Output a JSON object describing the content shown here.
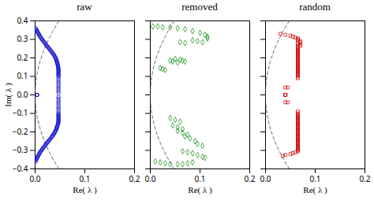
{
  "chart_data": [
    {
      "type": "scatter",
      "title": "raw",
      "xlabel": "Re( λ )",
      "ylabel": "Im( λ )",
      "xlim": [
        0,
        0.2
      ],
      "ylim": [
        -0.4,
        0.4
      ],
      "xticks": [
        {
          "value": 0,
          "label": "0.0"
        },
        0.1,
        0.2
      ],
      "yticks": [
        -0.4,
        -0.3,
        -0.2,
        -0.1,
        {
          "value": 0,
          "label": "0.0"
        },
        0.1,
        0.2,
        0.3,
        0.4
      ],
      "series": [
        {
          "type": "line",
          "line_style": "dashed",
          "color": "#444444",
          "x": [
            0.048,
            0.04332,
            0.03888,
            0.03468,
            0.03072,
            0.027,
            0.02352,
            0.02028,
            0.01728,
            0.01452,
            0.012,
            0.00972,
            0.00768,
            0.00588,
            0.00432,
            0.003,
            0.00192,
            0.00108,
            0.00048,
            0.00012,
            0,
            0.00012,
            0.00048,
            0.00108,
            0.00192,
            0.003,
            0.00432,
            0.00588,
            0.00768,
            0.00972,
            0.012,
            0.01452,
            0.01728,
            0.02028,
            0.02352,
            0.027,
            0.03072,
            0.03468,
            0.03888,
            0.04332,
            0.048
          ],
          "values": [
            -0.4,
            -0.38,
            -0.36,
            -0.34,
            -0.32,
            -0.3,
            -0.28,
            -0.26,
            -0.24,
            -0.22,
            -0.2,
            -0.18,
            -0.16,
            -0.14,
            -0.12,
            -0.1,
            -0.08,
            -0.06,
            -0.04,
            -0.02,
            0,
            0.02,
            0.04,
            0.06,
            0.08,
            0.1,
            0.12,
            0.14,
            0.16,
            0.18,
            0.2,
            0.22,
            0.24,
            0.26,
            0.28,
            0.3,
            0.32,
            0.34,
            0.36,
            0.38,
            0.4
          ]
        },
        {
          "type": "scatter",
          "marker": "circle",
          "color": "#0000cc",
          "x": [
            0.001,
            0.002,
            0.003,
            0.004,
            0.005,
            0.006,
            0.007,
            0.008,
            0.009,
            0.01,
            0.011,
            0.013,
            0.014,
            0.015,
            0.017,
            0.018,
            0.02,
            0.021,
            0.022,
            0.024,
            0.025,
            0.027,
            0.028,
            0.03,
            0.031,
            0.033,
            0.034,
            0.035,
            0.037,
            0.038,
            0.039,
            0.04,
            0.041,
            0.042,
            0.043,
            0.043,
            0.044,
            0.044,
            0.045,
            0.045,
            0.046,
            0.046,
            0.046,
            0.047,
            0.047,
            0.047,
            0.047,
            0.047,
            0.047,
            0.047,
            0.047,
            0.047,
            0.047,
            0.047,
            0.047,
            0.047,
            0.047,
            0.047,
            0.047,
            0.047,
            0.047,
            0.047,
            0.004,
            0.004,
            0.004,
            0.047,
            0.047,
            0.047,
            0.047,
            0.047,
            0.047,
            0.047,
            0.047,
            0.047,
            0.047,
            0.047,
            0.047,
            0.047,
            0.047,
            0.047,
            0.047,
            0.047,
            0.047,
            0.047,
            0.047,
            0.046,
            0.046,
            0.045,
            0.044,
            0.044,
            0.043,
            0.043,
            0.042,
            0.041,
            0.04,
            0.039,
            0.038,
            0.037,
            0.035,
            0.034,
            0.033,
            0.031,
            0.03,
            0.028,
            0.027,
            0.025,
            0.024,
            0.022,
            0.021,
            0.02,
            0.018,
            0.017,
            0.015,
            0.014,
            0.013,
            0.011,
            0.01,
            0.009,
            0.008,
            0.007,
            0.006,
            0.005,
            0.004,
            0.003,
            0.002,
            0.001,
            0.001
          ],
          "values": [
            0.36,
            0.355,
            0.35,
            0.345,
            0.34,
            0.335,
            0.33,
            0.325,
            0.32,
            0.315,
            0.31,
            0.305,
            0.3,
            0.295,
            0.29,
            0.285,
            0.28,
            0.275,
            0.27,
            0.265,
            0.26,
            0.255,
            0.25,
            0.245,
            0.24,
            0.235,
            0.23,
            0.225,
            0.22,
            0.215,
            0.21,
            0.205,
            0.2,
            0.195,
            0.19,
            0.185,
            0.18,
            0.175,
            0.17,
            0.165,
            0.16,
            0.155,
            0.15,
            0.145,
            0.14,
            0.135,
            0.13,
            0.125,
            0.12,
            0.115,
            0.11,
            0.105,
            0.1,
            0.09,
            0.08,
            0.07,
            0.06,
            0.05,
            0.04,
            0.03,
            0.02,
            0.01,
            0,
            0,
            0,
            -0.01,
            -0.02,
            -0.03,
            -0.04,
            -0.05,
            -0.06,
            -0.07,
            -0.08,
            -0.09,
            -0.1,
            -0.105,
            -0.11,
            -0.115,
            -0.12,
            -0.125,
            -0.13,
            -0.135,
            -0.14,
            -0.145,
            -0.15,
            -0.155,
            -0.16,
            -0.165,
            -0.17,
            -0.175,
            -0.18,
            -0.185,
            -0.19,
            -0.195,
            -0.2,
            -0.205,
            -0.21,
            -0.215,
            -0.22,
            -0.225,
            -0.23,
            -0.235,
            -0.24,
            -0.245,
            -0.25,
            -0.255,
            -0.26,
            -0.265,
            -0.27,
            -0.275,
            -0.28,
            -0.285,
            -0.29,
            -0.295,
            -0.3,
            -0.305,
            -0.31,
            -0.315,
            -0.32,
            -0.325,
            -0.33,
            -0.335,
            -0.34,
            -0.345,
            -0.35,
            -0.355,
            -0.36
          ]
        }
      ]
    },
    {
      "type": "scatter",
      "title": "removed",
      "xlabel": "Re( λ )",
      "tick_labels": "x",
      "xlim": [
        0,
        0.2
      ],
      "ylim": [
        -0.4,
        0.4
      ],
      "xticks": [
        {
          "value": 0,
          "label": "0.0"
        },
        0.1,
        0.2
      ],
      "yticks": [
        -0.4,
        -0.3,
        -0.2,
        -0.1,
        0,
        0.1,
        0.2,
        0.3,
        0.4
      ],
      "series": [
        {
          "type": "line",
          "line_style": "dashed",
          "color": "#444444",
          "x": [
            0.048,
            0.04332,
            0.03888,
            0.03468,
            0.03072,
            0.027,
            0.02352,
            0.02028,
            0.01728,
            0.01452,
            0.012,
            0.00972,
            0.00768,
            0.00588,
            0.00432,
            0.003,
            0.00192,
            0.00108,
            0.00048,
            0.00012,
            0,
            0.00012,
            0.00048,
            0.00108,
            0.00192,
            0.003,
            0.00432,
            0.00588,
            0.00768,
            0.00972,
            0.012,
            0.01452,
            0.01728,
            0.02028,
            0.02352,
            0.027,
            0.03072,
            0.03468,
            0.03888,
            0.04332,
            0.048
          ],
          "values": [
            -0.4,
            -0.38,
            -0.36,
            -0.34,
            -0.32,
            -0.3,
            -0.28,
            -0.26,
            -0.24,
            -0.22,
            -0.2,
            -0.18,
            -0.16,
            -0.14,
            -0.12,
            -0.1,
            -0.08,
            -0.06,
            -0.04,
            -0.02,
            0,
            0.02,
            0.04,
            0.06,
            0.08,
            0.1,
            0.12,
            0.14,
            0.16,
            0.18,
            0.2,
            0.22,
            0.24,
            0.26,
            0.28,
            0.3,
            0.32,
            0.34,
            0.36,
            0.38,
            0.4
          ]
        },
        {
          "type": "scatter",
          "marker": "diamond",
          "color": "#008800",
          "x": [
            0.005,
            0.015,
            0.025,
            0.04,
            0.055,
            0.07,
            0.085,
            0.1,
            0.11,
            0.115,
            0.115,
            0.085,
            0.095,
            0.105,
            0.06,
            0.07,
            0.05,
            0.06,
            0.065,
            0.07,
            0.04,
            0.045,
            0.055,
            0.02,
            0.025,
            0.03,
            0.04,
            0.05,
            0.06,
            0.045,
            0.055,
            0.065,
            0.055,
            0.065,
            0.075,
            0.07,
            0.08,
            0.09,
            0.095,
            0.105,
            0.065,
            0.075,
            0.085,
            0.095,
            0.105,
            0.11,
            0.01,
            0.02,
            0.03,
            0.04,
            0.055,
            0.065,
            0.075,
            0.085
          ],
          "values": [
            0.37,
            0.37,
            0.365,
            0.365,
            0.36,
            0.355,
            0.345,
            0.335,
            0.325,
            0.315,
            0.305,
            0.295,
            0.29,
            0.285,
            0.285,
            0.28,
            0.195,
            0.19,
            0.185,
            0.18,
            0.185,
            0.18,
            0.175,
            0.145,
            0.14,
            0.135,
            -0.125,
            -0.135,
            -0.145,
            -0.165,
            -0.175,
            -0.185,
            -0.195,
            -0.205,
            -0.215,
            -0.225,
            -0.235,
            -0.25,
            -0.265,
            -0.275,
            -0.305,
            -0.31,
            -0.315,
            -0.325,
            -0.335,
            -0.34,
            -0.36,
            -0.365,
            -0.37,
            -0.375,
            -0.375,
            -0.375,
            -0.37,
            -0.365
          ]
        }
      ]
    },
    {
      "type": "scatter",
      "title": "random",
      "xlabel": "Re( λ )",
      "tick_labels": "x",
      "xlim": [
        0,
        0.2
      ],
      "ylim": [
        -0.4,
        0.4
      ],
      "xticks": [
        {
          "value": 0,
          "label": "0.0"
        },
        0.1,
        0.2
      ],
      "yticks": [
        -0.4,
        -0.3,
        -0.2,
        -0.1,
        0,
        0.1,
        0.2,
        0.3,
        0.4
      ],
      "series": [
        {
          "type": "line",
          "line_style": "dashed",
          "color": "#444444",
          "x": [
            0.048,
            0.04332,
            0.03888,
            0.03468,
            0.03072,
            0.027,
            0.02352,
            0.02028,
            0.01728,
            0.01452,
            0.012,
            0.00972,
            0.00768,
            0.00588,
            0.00432,
            0.003,
            0.00192,
            0.00108,
            0.00048,
            0.00012,
            0,
            0.00012,
            0.00048,
            0.00108,
            0.00192,
            0.003,
            0.00432,
            0.00588,
            0.00768,
            0.00972,
            0.012,
            0.01452,
            0.01728,
            0.02028,
            0.02352,
            0.027,
            0.03072,
            0.03468,
            0.03888,
            0.04332,
            0.048
          ],
          "values": [
            -0.4,
            -0.38,
            -0.36,
            -0.34,
            -0.32,
            -0.3,
            -0.28,
            -0.26,
            -0.24,
            -0.22,
            -0.2,
            -0.18,
            -0.16,
            -0.14,
            -0.12,
            -0.1,
            -0.08,
            -0.06,
            -0.04,
            -0.02,
            0,
            0.02,
            0.04,
            0.06,
            0.08,
            0.1,
            0.12,
            0.14,
            0.16,
            0.18,
            0.2,
            0.22,
            0.24,
            0.26,
            0.28,
            0.3,
            0.32,
            0.34,
            0.36,
            0.38,
            0.4
          ]
        },
        {
          "type": "scatter",
          "marker": "square",
          "color": "#cc0000",
          "x": [
            0.03,
            0.04,
            0.05,
            0.055,
            0.06,
            0.065,
            0.065,
            0.065,
            0.07,
            0.07,
            0.065,
            0.07,
            0.065,
            0.07,
            0.065,
            0.065,
            0.065,
            0.065,
            0.065,
            0.065,
            0.065,
            0.065,
            0.065,
            0.065,
            0.065,
            0.065,
            0.065,
            0.065,
            0.065,
            0.065,
            0.065,
            0.065,
            0.065,
            0.065,
            0.065,
            0.065,
            0.065,
            0.065,
            0.065,
            0.065,
            0.065,
            0.065,
            0.065,
            0.065,
            0.065,
            0.065,
            0.065,
            0.065,
            0.04,
            0.045,
            0.04,
            0.04,
            0.04,
            0.04,
            0.045,
            0.065,
            0.065,
            0.065,
            0.065,
            0.065,
            0.065,
            0.065,
            0.065,
            0.065,
            0.065,
            0.065,
            0.065,
            0.065,
            0.065,
            0.065,
            0.065,
            0.065,
            0.065,
            0.065,
            0.065,
            0.065,
            0.065,
            0.065,
            0.065,
            0.065,
            0.065,
            0.065,
            0.065,
            0.065,
            0.065,
            0.065,
            0.065,
            0.065,
            0.065,
            0.065,
            0.065,
            0.065,
            0.065,
            0.065,
            0.065,
            0.065,
            0.065,
            0.065,
            0.06,
            0.055,
            0.05,
            0.04,
            0.035
          ],
          "values": [
            0.33,
            0.325,
            0.32,
            0.315,
            0.31,
            0.305,
            0.3,
            0.295,
            0.29,
            0.285,
            0.28,
            0.275,
            0.27,
            0.265,
            0.26,
            0.255,
            0.25,
            0.245,
            0.24,
            0.235,
            0.23,
            0.225,
            0.22,
            0.215,
            0.21,
            0.205,
            0.2,
            0.195,
            0.19,
            0.185,
            0.18,
            0.175,
            0.17,
            0.165,
            0.16,
            0.155,
            0.15,
            0.145,
            0.14,
            0.135,
            0.13,
            0.125,
            0.12,
            0.115,
            0.11,
            0.105,
            0.1,
            0.09,
            0.04,
            0.04,
            0,
            0,
            0,
            -0.04,
            -0.04,
            -0.09,
            -0.1,
            -0.105,
            -0.11,
            -0.115,
            -0.12,
            -0.125,
            -0.13,
            -0.135,
            -0.14,
            -0.145,
            -0.15,
            -0.155,
            -0.16,
            -0.165,
            -0.17,
            -0.175,
            -0.18,
            -0.185,
            -0.19,
            -0.195,
            -0.2,
            -0.205,
            -0.21,
            -0.215,
            -0.22,
            -0.225,
            -0.23,
            -0.235,
            -0.24,
            -0.245,
            -0.25,
            -0.255,
            -0.26,
            -0.265,
            -0.27,
            -0.275,
            -0.28,
            -0.285,
            -0.29,
            -0.295,
            -0.3,
            -0.305,
            -0.31,
            -0.315,
            -0.32,
            -0.325,
            -0.33
          ]
        }
      ]
    }
  ]
}
